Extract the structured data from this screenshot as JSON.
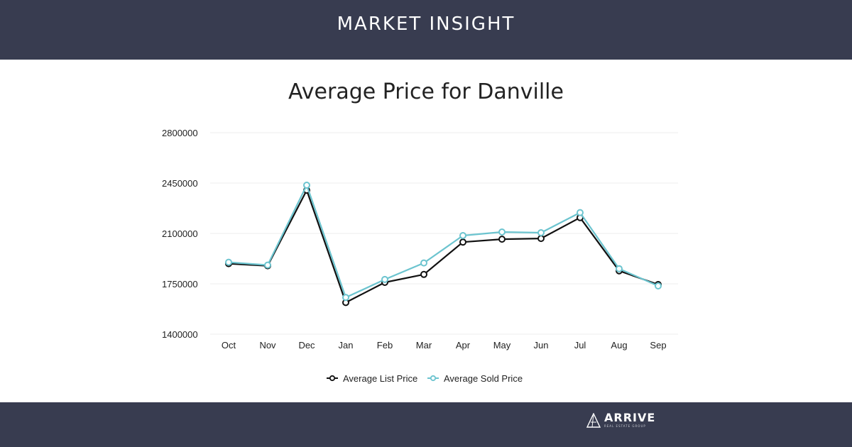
{
  "header": {
    "title": "MARKET INSIGHT"
  },
  "footer": {
    "logo_word": "ARRIVE",
    "logo_sub": "REAL ESTATE GROUP"
  },
  "colors": {
    "banner": "#383c50",
    "list_series": "#111111",
    "sold_series": "#6cc4cf",
    "grid": "#ececec"
  },
  "icons": {
    "logo_mark": "triangle-logo-icon"
  },
  "chart_data": {
    "type": "line",
    "title": "Average Price for Danville",
    "xlabel": "",
    "ylabel": "",
    "categories": [
      "Oct",
      "Nov",
      "Dec",
      "Jan",
      "Feb",
      "Mar",
      "Apr",
      "May",
      "Jun",
      "Jul",
      "Aug",
      "Sep"
    ],
    "ylim": [
      1400000,
      2800000
    ],
    "yticks": [
      1400000,
      1750000,
      2100000,
      2450000,
      2800000
    ],
    "ytick_labels": [
      "1400000",
      "1750000",
      "2100000",
      "2450000",
      "2800000"
    ],
    "grid": true,
    "legend_position": "bottom-center",
    "series": [
      {
        "name": "Average List Price",
        "color": "#111111",
        "values": [
          1890000,
          1875000,
          2400000,
          1620000,
          1760000,
          1815000,
          2040000,
          2060000,
          2065000,
          2210000,
          1840000,
          1745000
        ]
      },
      {
        "name": "Average Sold Price",
        "color": "#6cc4cf",
        "values": [
          1900000,
          1880000,
          2435000,
          1655000,
          1780000,
          1895000,
          2085000,
          2110000,
          2105000,
          2245000,
          1855000,
          1735000
        ]
      }
    ]
  }
}
